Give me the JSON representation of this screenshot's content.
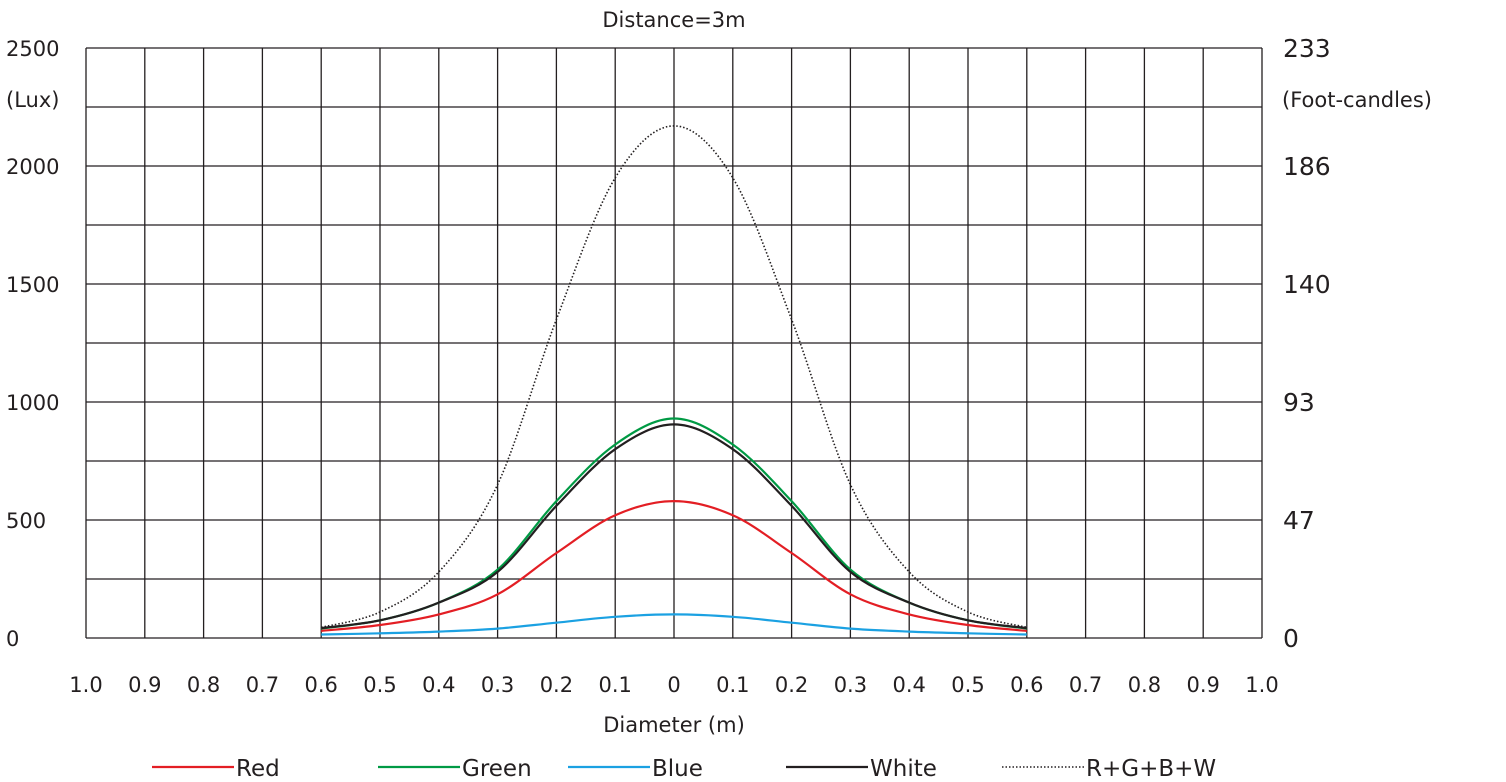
{
  "chart_data": {
    "type": "line",
    "title": "Distance=3m",
    "xlabel": "Diameter (m)",
    "ylabel": "(Lux)",
    "ylabel_right": "(Foot-candles)",
    "x_tick_labels": [
      "1.0",
      "0.9",
      "0.8",
      "0.7",
      "0.6",
      "0.5",
      "0.4",
      "0.3",
      "0.2",
      "0.1",
      "0",
      "0.1",
      "0.2",
      "0.3",
      "0.4",
      "0.5",
      "0.6",
      "0.7",
      "0.8",
      "0.9",
      "1.0"
    ],
    "xlim": [
      -1.0,
      1.0
    ],
    "ylim": [
      0,
      2500
    ],
    "y_ticks": [
      0,
      500,
      1000,
      1500,
      2000,
      2500
    ],
    "y_tick_labels": [
      "0",
      "500",
      "1000",
      "1500",
      "2000",
      "2500"
    ],
    "y_right_tick_labels": [
      "0",
      "47",
      "93",
      "140",
      "186",
      "233"
    ],
    "grid": true,
    "legend_position": "bottom",
    "x": [
      -0.6,
      -0.5,
      -0.4,
      -0.3,
      -0.2,
      -0.1,
      0,
      0.1,
      0.2,
      0.3,
      0.4,
      0.5,
      0.6
    ],
    "series": [
      {
        "name": "Red",
        "color": "#e31e24",
        "style": "solid",
        "values": [
          30,
          55,
          100,
          185,
          360,
          520,
          580,
          520,
          360,
          185,
          100,
          55,
          30
        ]
      },
      {
        "name": "Green",
        "color": "#009a44",
        "style": "solid",
        "values": [
          40,
          75,
          150,
          290,
          580,
          820,
          930,
          820,
          580,
          290,
          150,
          75,
          40
        ]
      },
      {
        "name": "Blue",
        "color": "#1ba1e2",
        "style": "solid",
        "values": [
          15,
          20,
          27,
          40,
          65,
          90,
          100,
          90,
          65,
          40,
          27,
          20,
          15
        ]
      },
      {
        "name": "White",
        "color": "#231f20",
        "style": "solid",
        "values": [
          42,
          75,
          150,
          280,
          560,
          800,
          905,
          800,
          560,
          280,
          150,
          75,
          42
        ]
      },
      {
        "name": "R+G+B+W",
        "color": "#231f20",
        "style": "dotted",
        "values": [
          45,
          110,
          280,
          650,
          1350,
          1950,
          2170,
          1950,
          1350,
          650,
          280,
          110,
          45
        ]
      }
    ]
  }
}
